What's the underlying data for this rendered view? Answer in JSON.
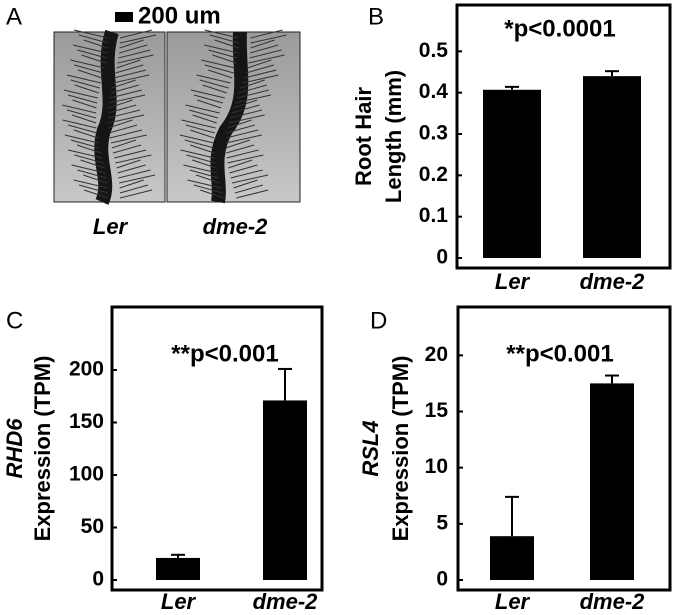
{
  "image_panel": {
    "letter": "A",
    "scale_label": "200 um",
    "labels": [
      "Ler",
      "dme-2"
    ]
  },
  "chart_data": [
    {
      "type": "bar",
      "letter": "B",
      "annotation": "*p<0.0001",
      "ylabel": [
        "Root Hair",
        "Length (mm)"
      ],
      "categories": [
        "Ler",
        "dme-2"
      ],
      "values": [
        0.407,
        0.44
      ],
      "errors": [
        0.007,
        0.012
      ],
      "color": "#000000",
      "ylim": [
        0,
        0.6
      ],
      "yticks": [
        0,
        0.1,
        0.2,
        0.3,
        0.4,
        0.5
      ]
    },
    {
      "type": "bar",
      "letter": "C",
      "annotation": "**p<0.001",
      "ylabel": [
        "RHD6",
        "Expression (TPM)"
      ],
      "categories": [
        "Ler",
        "dme-2"
      ],
      "values": [
        21,
        171
      ],
      "errors": [
        3,
        30
      ],
      "color": "#000000",
      "ylim": [
        0,
        260
      ],
      "yticks": [
        0,
        50,
        100,
        150,
        200
      ]
    },
    {
      "type": "bar",
      "letter": "D",
      "annotation": "**p<0.001",
      "ylabel": [
        "RSL4",
        "Expression (TPM)"
      ],
      "categories": [
        "Ler",
        "dme-2"
      ],
      "values": [
        3.9,
        17.5
      ],
      "errors": [
        3.5,
        0.7
      ],
      "color": "#000000",
      "ylim": [
        0,
        24.3
      ],
      "yticks": [
        0,
        5,
        10,
        15,
        20
      ]
    }
  ]
}
